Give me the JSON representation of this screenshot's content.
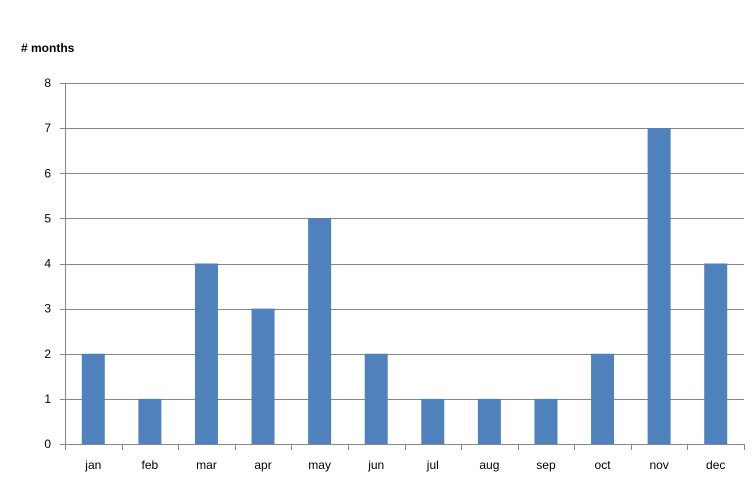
{
  "chart_data": {
    "type": "bar",
    "title": "",
    "xlabel": "",
    "ylabel": "# months",
    "categories": [
      "jan",
      "feb",
      "mar",
      "apr",
      "may",
      "jun",
      "jul",
      "aug",
      "sep",
      "oct",
      "nov",
      "dec"
    ],
    "values": [
      2,
      1,
      4,
      3,
      5,
      2,
      1,
      1,
      1,
      2,
      7,
      4
    ],
    "ylim": [
      0,
      8
    ],
    "yticks": [
      "0",
      "1",
      "2",
      "3",
      "4",
      "5",
      "6",
      "7",
      "8"
    ],
    "grid": true,
    "legend": "none",
    "colors": {
      "bar": "#4f81bd",
      "grid": "#868686",
      "axis": "#868686",
      "text": "#000000"
    }
  }
}
